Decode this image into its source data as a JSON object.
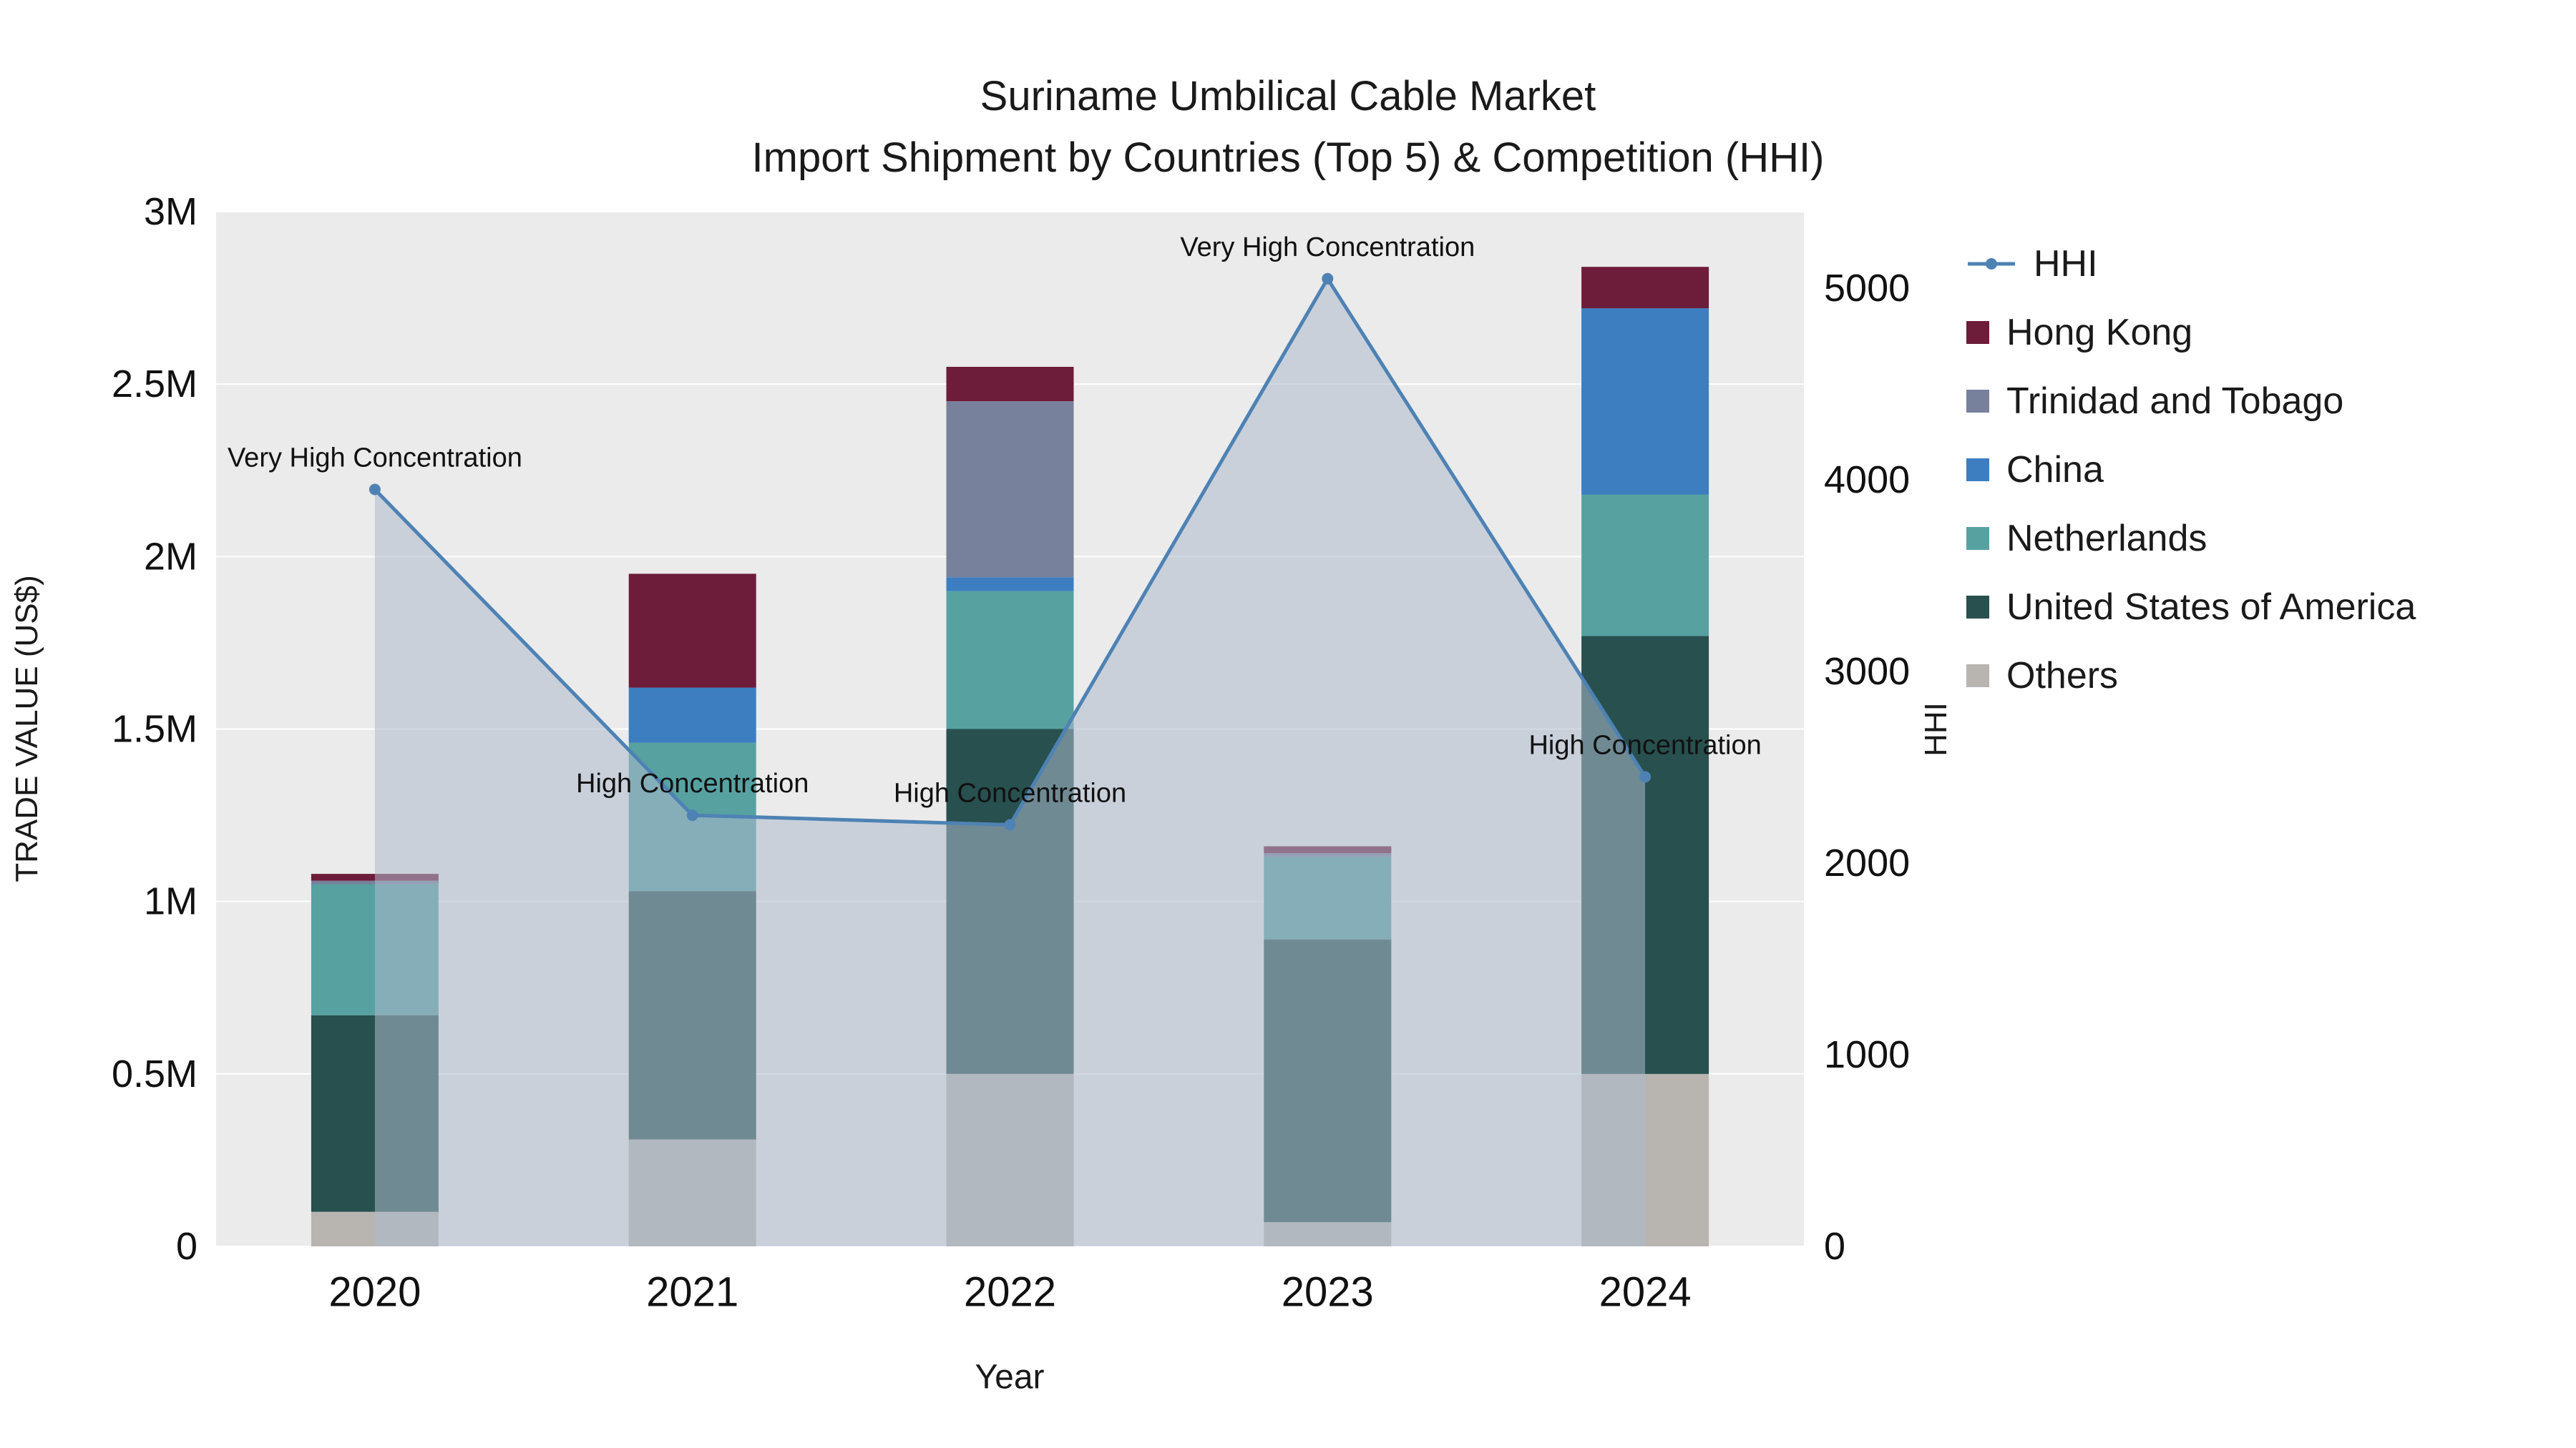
{
  "title": {
    "line1": "Suriname Umbilical Cable Market",
    "line2": "Import Shipment by Countries (Top 5) & Competition (HHI)"
  },
  "axes": {
    "x_title": "Year",
    "y_left_title": "TRADE VALUE (US$)",
    "y_right_title": "HHI"
  },
  "legend": {
    "items": [
      {
        "label": "HHI",
        "color": "#4E82B4",
        "type": "line"
      },
      {
        "label": "Hong Kong",
        "color": "#6D1C3A",
        "type": "square"
      },
      {
        "label": "Trinidad and Tobago",
        "color": "#77819B",
        "type": "square"
      },
      {
        "label": "China",
        "color": "#3C7EC0",
        "type": "square"
      },
      {
        "label": "Netherlands",
        "color": "#57A1A1",
        "type": "square"
      },
      {
        "label": "United States of America",
        "color": "#27504E",
        "type": "square"
      },
      {
        "label": "Others",
        "color": "#B8B5B1",
        "type": "square"
      }
    ]
  },
  "chart_data": {
    "type": "bar+line",
    "title": "Suriname Umbilical Cable Market — Import Shipment by Countries (Top 5) & Competition (HHI)",
    "categories": [
      "2020",
      "2021",
      "2022",
      "2023",
      "2024"
    ],
    "xlabel": "Year",
    "ylabel_left": "TRADE VALUE (US$)",
    "ylabel_right": "HHI",
    "plot_bg": "#ebebeb",
    "bar_series_bottom_to_top": [
      {
        "name": "Others",
        "color": "#B8B5B1",
        "values": [
          100000,
          310000,
          500000,
          70000,
          500000
        ]
      },
      {
        "name": "United States of America",
        "color": "#27504E",
        "values": [
          570000,
          720000,
          1000000,
          820000,
          1270000
        ]
      },
      {
        "name": "Netherlands",
        "color": "#57A1A1",
        "values": [
          380000,
          430000,
          400000,
          240000,
          410000
        ]
      },
      {
        "name": "China",
        "color": "#3C7EC0",
        "values": [
          0,
          160000,
          40000,
          0,
          540000
        ]
      },
      {
        "name": "Trinidad and Tobago",
        "color": "#77819B",
        "values": [
          10000,
          0,
          510000,
          10000,
          0
        ]
      },
      {
        "name": "Hong Kong",
        "color": "#6D1C3A",
        "values": [
          20000,
          330000,
          100000,
          20000,
          120000
        ]
      }
    ],
    "line_series": {
      "name": "HHI",
      "axis": "right",
      "color": "#4E82B4",
      "area": true,
      "area_color": "rgba(173,185,204,0.55)",
      "values": [
        3950,
        2250,
        2200,
        5050,
        2450
      ]
    },
    "annotations": [
      {
        "index": 0,
        "text": "Very High Concentration"
      },
      {
        "index": 1,
        "text": "High Concentration"
      },
      {
        "index": 2,
        "text": "High Concentration"
      },
      {
        "index": 3,
        "text": "Very High Concentration"
      },
      {
        "index": 4,
        "text": "High Concentration"
      }
    ],
    "y_left": {
      "range": [
        0,
        3000000
      ],
      "ticks": [
        {
          "value": 0,
          "label": "0"
        },
        {
          "value": 500000,
          "label": "0.5M"
        },
        {
          "value": 1000000,
          "label": "1M"
        },
        {
          "value": 1500000,
          "label": "1.5M"
        },
        {
          "value": 2000000,
          "label": "2M"
        },
        {
          "value": 2500000,
          "label": "2.5M"
        },
        {
          "value": 3000000,
          "label": "3M"
        }
      ]
    },
    "y_right": {
      "range": [
        0,
        5400
      ],
      "ticks": [
        {
          "value": 0,
          "label": "0"
        },
        {
          "value": 1000,
          "label": "1000"
        },
        {
          "value": 2000,
          "label": "2000"
        },
        {
          "value": 3000,
          "label": "3000"
        },
        {
          "value": 4000,
          "label": "4000"
        },
        {
          "value": 5000,
          "label": "5000"
        }
      ]
    }
  }
}
